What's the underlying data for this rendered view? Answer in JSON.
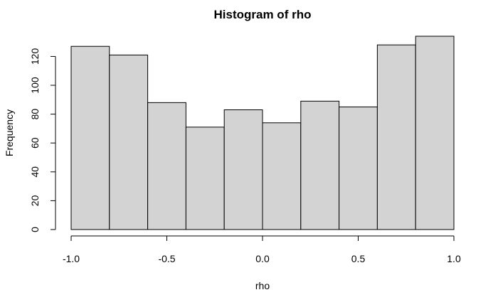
{
  "chart_data": {
    "type": "bar",
    "title": "Histogram of rho",
    "xlabel": "rho",
    "ylabel": "Frequency",
    "bins": [
      {
        "from": -1.0,
        "to": -0.8,
        "count": 127
      },
      {
        "from": -0.8,
        "to": -0.6,
        "count": 121
      },
      {
        "from": -0.6,
        "to": -0.4,
        "count": 88
      },
      {
        "from": -0.4,
        "to": -0.2,
        "count": 71
      },
      {
        "from": -0.2,
        "to": 0.0,
        "count": 83
      },
      {
        "from": 0.0,
        "to": 0.2,
        "count": 74
      },
      {
        "from": 0.2,
        "to": 0.4,
        "count": 89
      },
      {
        "from": 0.4,
        "to": 0.6,
        "count": 85
      },
      {
        "from": 0.6,
        "to": 0.8,
        "count": 128
      },
      {
        "from": 0.8,
        "to": 1.0,
        "count": 134
      }
    ],
    "xlim": [
      -1.0,
      1.0
    ],
    "ylim": [
      0,
      134
    ],
    "xticks": [
      -1.0,
      -0.5,
      0.0,
      0.5,
      1.0
    ],
    "xtick_labels": [
      "-1.0",
      "-0.5",
      "0.0",
      "0.5",
      "1.0"
    ],
    "yticks": [
      0,
      20,
      40,
      60,
      80,
      100,
      120
    ],
    "ytick_labels": [
      "0",
      "20",
      "40",
      "60",
      "80",
      "100",
      "120"
    ],
    "bar_color": "#d3d3d3",
    "edge_color": "#000000",
    "grid": false,
    "legend": "none"
  }
}
